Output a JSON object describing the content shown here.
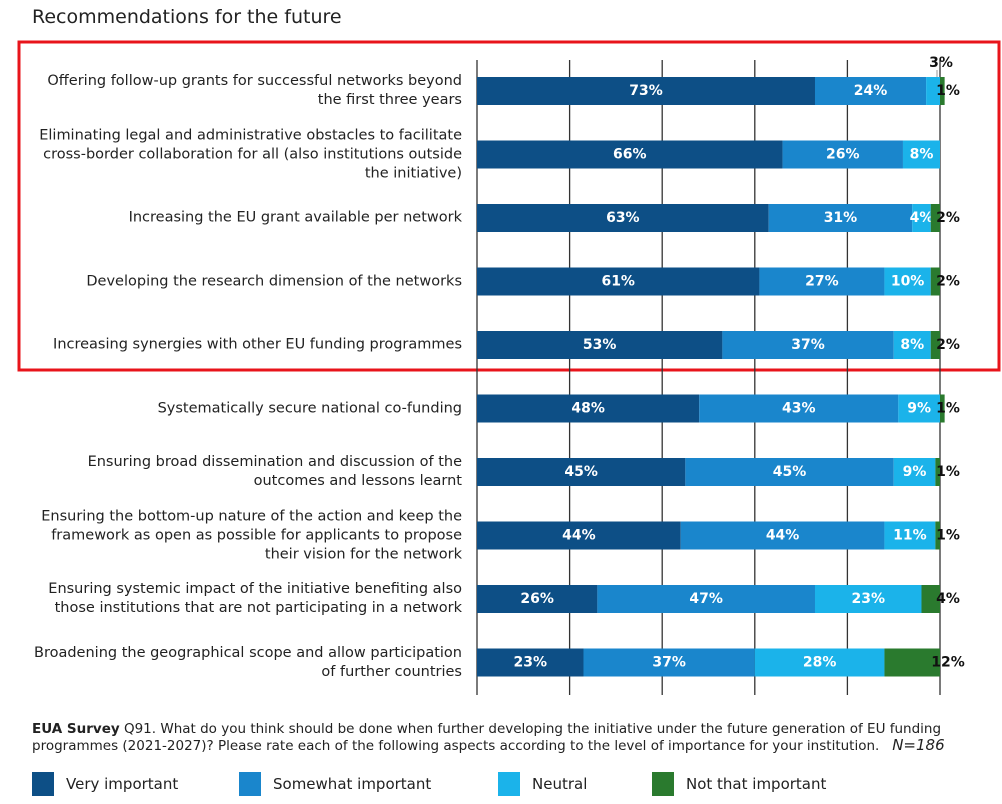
{
  "chart_data": {
    "type": "stacked-bar-horizontal",
    "title": "Recommendations for the future",
    "categories": [
      "Offering follow-up grants for successful networks beyond the first three years",
      "Eliminating legal and administrative obstacles to facilitate cross-border collaboration for all (also institutions outside the initiative)",
      "Increasing the EU grant available per network",
      "Developing the research dimension of the networks",
      "Increasing synergies with other EU funding programmes",
      "Systematically secure national co-funding",
      "Ensuring broad dissemination and discussion of the outcomes and lessons learnt",
      "Ensuring the bottom-up nature of the action and keep the framework as open as possible for applicants to propose their vision for the network",
      "Ensuring systemic impact of the initiative benefiting also those institutions that are not participating in a network",
      "Broadening the geographical scope and allow participation of further countries"
    ],
    "series": [
      {
        "name": "Very important",
        "color": "#0d4f86",
        "values": [
          73,
          66,
          63,
          61,
          53,
          48,
          45,
          44,
          26,
          23
        ],
        "value_labels": [
          "73%",
          "66%",
          "63%",
          "61%",
          "53%",
          "48%",
          "45%",
          "44%",
          "26%",
          "23%"
        ]
      },
      {
        "name": "Somewhat important",
        "color": "#1a86cc",
        "values": [
          24,
          26,
          31,
          27,
          37,
          43,
          45,
          44,
          47,
          37
        ],
        "value_labels": [
          "24%",
          "26%",
          "31%",
          "27%",
          "37%",
          "43%",
          "45%",
          "44%",
          "47%",
          "37%"
        ]
      },
      {
        "name": "Neutral",
        "color": "#1bb3ea",
        "values": [
          3,
          8,
          4,
          10,
          8,
          9,
          9,
          11,
          23,
          28
        ],
        "value_labels": [
          "3%",
          "8%",
          "4%",
          "10%",
          "8%",
          "9%",
          "9%",
          "11%",
          "23%",
          "28%"
        ]
      },
      {
        "name": "Not that important",
        "color": "#2a7a2e",
        "values": [
          1,
          null,
          2,
          2,
          2,
          1,
          1,
          1,
          4,
          12
        ],
        "value_labels": [
          "1%",
          null,
          "2%",
          "2%",
          "2%",
          "1%",
          "1%",
          "1%",
          "4%",
          "12%"
        ]
      }
    ],
    "xlim": [
      0,
      100
    ],
    "xticks": [
      0,
      20,
      40,
      60,
      80,
      100
    ],
    "grid": true,
    "footnote": {
      "source": "EUA Survey",
      "text": "Q91. What do you think should be done when further developing the initiative under the future generation of EU funding programmes (2021-2027)? Please rate each of the following aspects according to the level of importance for your institution.",
      "n": "N=186"
    }
  }
}
